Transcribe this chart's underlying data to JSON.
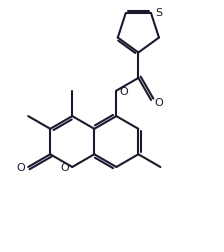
{
  "bg_color": "#ffffff",
  "line_color": "#1a1a2e",
  "lw": 1.5,
  "figsize": [
    2.24,
    2.53
  ],
  "dpi": 100,
  "xlim": [
    0,
    10
  ],
  "ylim": [
    0,
    11
  ]
}
